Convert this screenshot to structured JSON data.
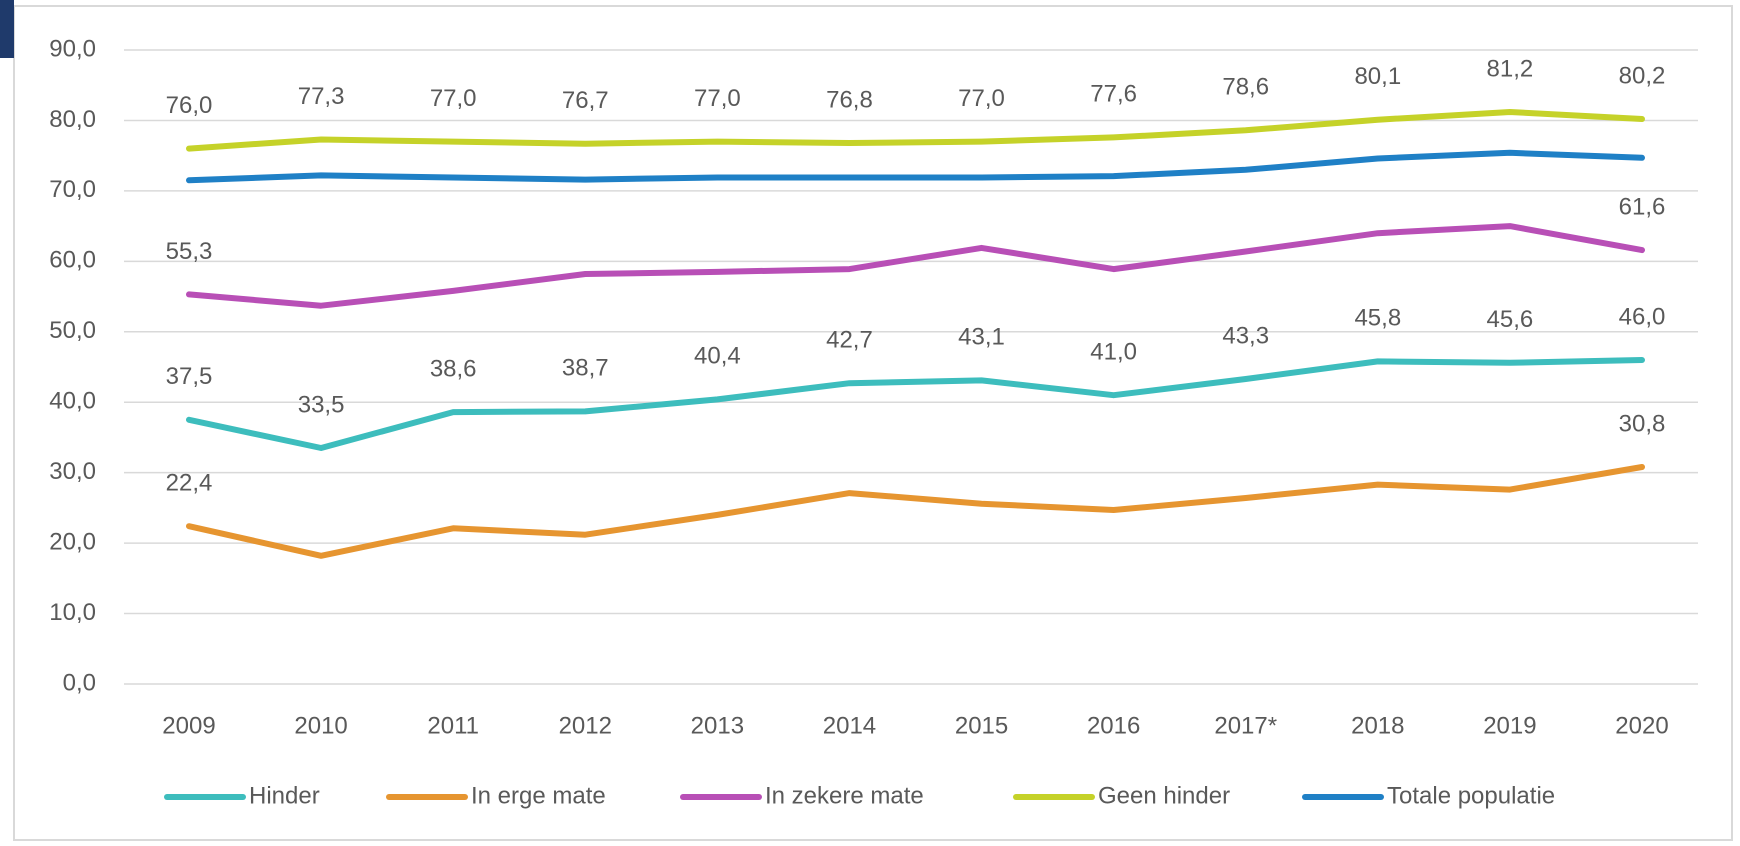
{
  "chart_data": {
    "type": "line",
    "categories": [
      "2009",
      "2010",
      "2011",
      "2012",
      "2013",
      "2014",
      "2015",
      "2016",
      "2017*",
      "2018",
      "2019",
      "2020"
    ],
    "series": [
      {
        "name": "Hinder",
        "color": "#3dbdbd",
        "values": [
          37.5,
          33.5,
          38.6,
          38.7,
          40.4,
          42.7,
          43.1,
          41.0,
          43.3,
          45.8,
          45.6,
          46.0
        ],
        "value_labels": [
          "37,5",
          "33,5",
          "38,6",
          "38,7",
          "40,4",
          "42,7",
          "43,1",
          "41,0",
          "43,3",
          "45,8",
          "45,6",
          "46,0"
        ]
      },
      {
        "name": "In erge mate",
        "color": "#e69530",
        "values": [
          22.4,
          18.2,
          22.1,
          21.2,
          24.0,
          27.1,
          25.6,
          24.7,
          26.4,
          28.3,
          27.6,
          30.8
        ],
        "value_labels": [
          "22,4",
          null,
          null,
          null,
          null,
          null,
          null,
          null,
          null,
          null,
          null,
          "30,8"
        ]
      },
      {
        "name": "In zekere mate",
        "color": "#b84fb6",
        "values": [
          55.3,
          53.7,
          55.8,
          58.2,
          58.5,
          58.9,
          61.9,
          58.9,
          61.4,
          64.0,
          65.0,
          61.6
        ],
        "value_labels": [
          "55,3",
          null,
          null,
          null,
          null,
          null,
          null,
          null,
          null,
          null,
          null,
          "61,6"
        ]
      },
      {
        "name": "Geen hinder",
        "color": "#c5d229",
        "values": [
          76.0,
          77.3,
          77.0,
          76.7,
          77.0,
          76.8,
          77.0,
          77.6,
          78.6,
          80.1,
          81.2,
          80.2
        ],
        "value_labels": [
          "76,0",
          "77,3",
          "77,0",
          "76,7",
          "77,0",
          "76,8",
          "77,0",
          "77,6",
          "78,6",
          "80,1",
          "81,2",
          "80,2"
        ]
      },
      {
        "name": "Totale populatie",
        "color": "#1f80c6",
        "values": [
          71.5,
          72.2,
          71.9,
          71.6,
          71.9,
          71.9,
          71.9,
          72.1,
          73.0,
          74.6,
          75.4,
          74.7
        ]
      }
    ],
    "ylim": [
      0,
      90
    ],
    "yticks": [
      {
        "value": 0,
        "label": "0,0"
      },
      {
        "value": 10,
        "label": "10,0"
      },
      {
        "value": 20,
        "label": "20,0"
      },
      {
        "value": 30,
        "label": "30,0"
      },
      {
        "value": 40,
        "label": "40,0"
      },
      {
        "value": 50,
        "label": "50,0"
      },
      {
        "value": 60,
        "label": "60,0"
      },
      {
        "value": 70,
        "label": "70,0"
      },
      {
        "value": 80,
        "label": "80,0"
      },
      {
        "value": 90,
        "label": "90,0"
      }
    ],
    "grid": true,
    "legend": "bottom"
  }
}
